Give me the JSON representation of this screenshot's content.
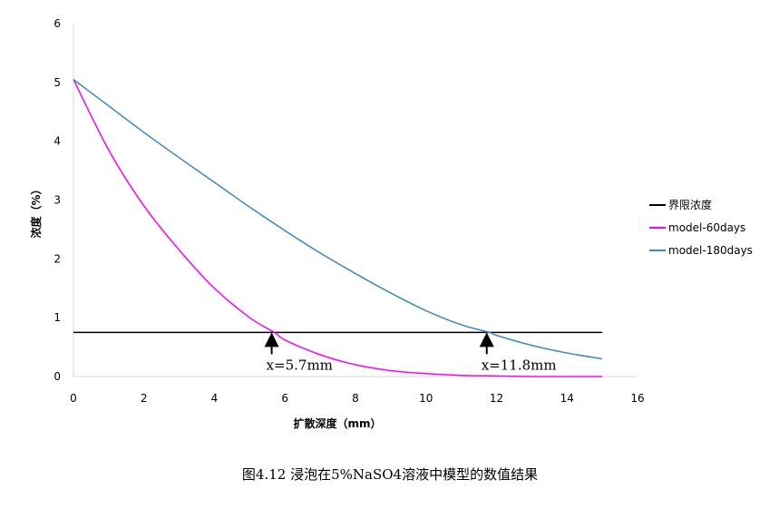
{
  "chart_data": {
    "type": "line",
    "xlabel": "扩散深度（mm）",
    "ylabel": "浓度（%）",
    "xlim": [
      0,
      16
    ],
    "ylim": [
      0,
      6
    ],
    "x_ticks": [
      0,
      2,
      4,
      6,
      8,
      10,
      12,
      14,
      16
    ],
    "y_ticks": [
      0,
      1,
      2,
      3,
      4,
      5,
      6
    ],
    "grid": false,
    "legend_position": "right",
    "series": [
      {
        "name": "界限浓度",
        "color": "#000000",
        "x": [
          0,
          15
        ],
        "y": [
          0.75,
          0.75
        ]
      },
      {
        "name": "model-60days",
        "color": "#FF00FF",
        "x": [
          0,
          1,
          2,
          3,
          4,
          5,
          5.7,
          6,
          7,
          8,
          9,
          10,
          11,
          12,
          13,
          14,
          15
        ],
        "y": [
          5.05,
          3.85,
          2.9,
          2.15,
          1.5,
          1.0,
          0.75,
          0.62,
          0.37,
          0.2,
          0.1,
          0.05,
          0.02,
          0.01,
          0.0,
          0.0,
          0.0
        ]
      },
      {
        "name": "model-180days",
        "color": "#3A87C7",
        "x": [
          0,
          1,
          2,
          3,
          4,
          5,
          6,
          7,
          8,
          9,
          10,
          11,
          11.8,
          12,
          13,
          14,
          15
        ],
        "y": [
          5.05,
          4.6,
          4.15,
          3.72,
          3.3,
          2.88,
          2.48,
          2.1,
          1.75,
          1.42,
          1.12,
          0.88,
          0.75,
          0.7,
          0.53,
          0.4,
          0.3
        ]
      }
    ],
    "annotations": [
      {
        "text": "x=5.7mm",
        "x": 5.7,
        "y": 0.75
      },
      {
        "text": "x=11.8mm",
        "x": 11.8,
        "y": 0.75
      }
    ]
  },
  "caption": "图4.12 浸泡在5%NaSO4溶液中模型的数值结果"
}
